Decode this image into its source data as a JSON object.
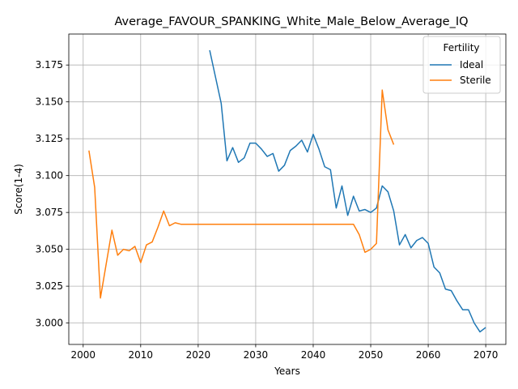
{
  "chart_data": {
    "type": "line",
    "title": "Average_FAVOUR_SPANKING_White_Male_Below_Average_IQ",
    "xlabel": "Years",
    "ylabel": "Score(1-4)",
    "xlim": [
      1997.5,
      2073.5
    ],
    "ylim": [
      2.9855,
      3.196
    ],
    "xticks": [
      2000,
      2010,
      2020,
      2030,
      2040,
      2050,
      2060,
      2070
    ],
    "yticks": [
      3.0,
      3.025,
      3.05,
      3.075,
      3.1,
      3.125,
      3.15,
      3.175
    ],
    "grid": true,
    "legend": {
      "title": "Fertility",
      "placement": "top-right"
    },
    "series": [
      {
        "name": "Ideal",
        "color": "#1f77b4",
        "x": [
          2022,
          2023,
          2024,
          2025,
          2026,
          2027,
          2028,
          2029,
          2030,
          2031,
          2032,
          2033,
          2034,
          2035,
          2036,
          2037,
          2038,
          2039,
          2040,
          2041,
          2042,
          2043,
          2044,
          2045,
          2046,
          2047,
          2048,
          2049,
          2050,
          2051,
          2052,
          2053,
          2054,
          2055,
          2056,
          2057,
          2058,
          2059,
          2060,
          2061,
          2062,
          2063,
          2064,
          2065,
          2066,
          2067,
          2068,
          2069,
          2070
        ],
        "y": [
          3.185,
          3.167,
          3.149,
          3.11,
          3.119,
          3.109,
          3.112,
          3.122,
          3.122,
          3.118,
          3.113,
          3.115,
          3.103,
          3.107,
          3.117,
          3.12,
          3.124,
          3.116,
          3.128,
          3.118,
          3.106,
          3.104,
          3.078,
          3.093,
          3.073,
          3.086,
          3.076,
          3.077,
          3.075,
          3.078,
          3.093,
          3.089,
          3.076,
          3.053,
          3.06,
          3.051,
          3.056,
          3.058,
          3.054,
          3.038,
          3.034,
          3.023,
          3.022,
          3.015,
          3.009,
          3.009,
          3.0,
          2.994,
          2.997
        ]
      },
      {
        "name": "Sterile",
        "color": "#ff7f0e",
        "x": [
          2001,
          2002,
          2003,
          2004,
          2005,
          2006,
          2007,
          2008,
          2009,
          2010,
          2011,
          2012,
          2013,
          2014,
          2015,
          2016,
          2017,
          2018,
          2019,
          2020,
          2021,
          2022,
          2023,
          2024,
          2025,
          2026,
          2027,
          2028,
          2029,
          2030,
          2031,
          2032,
          2033,
          2034,
          2035,
          2036,
          2037,
          2038,
          2039,
          2040,
          2041,
          2042,
          2043,
          2044,
          2045,
          2046,
          2047,
          2048,
          2049,
          2050,
          2051,
          2052,
          2053,
          2054
        ],
        "y": [
          3.117,
          3.092,
          3.017,
          3.04,
          3.063,
          3.046,
          3.05,
          3.049,
          3.052,
          3.041,
          3.053,
          3.055,
          3.065,
          3.076,
          3.066,
          3.068,
          3.067,
          3.067,
          3.067,
          3.067,
          3.067,
          3.067,
          3.067,
          3.067,
          3.067,
          3.067,
          3.067,
          3.067,
          3.067,
          3.067,
          3.067,
          3.067,
          3.067,
          3.067,
          3.067,
          3.067,
          3.067,
          3.067,
          3.067,
          3.067,
          3.067,
          3.067,
          3.067,
          3.067,
          3.067,
          3.067,
          3.067,
          3.06,
          3.048,
          3.05,
          3.054,
          3.158,
          3.131,
          3.121
        ]
      }
    ]
  }
}
